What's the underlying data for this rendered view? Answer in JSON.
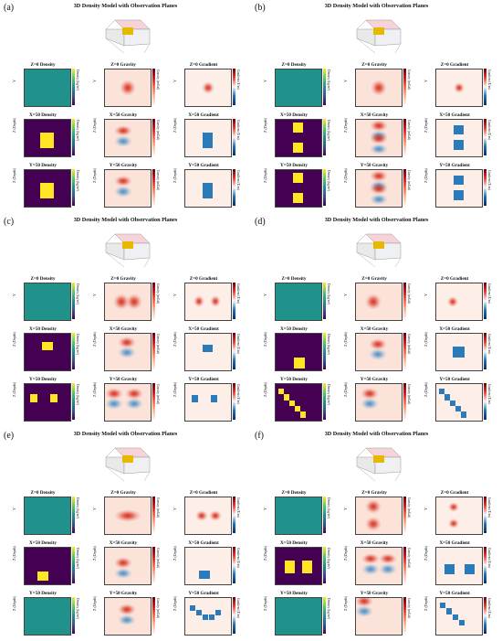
{
  "figure_title": "3D Density Model with Observation Planes",
  "panels": [
    {
      "letter": "(a)"
    },
    {
      "letter": "(b)"
    },
    {
      "letter": "(c)"
    },
    {
      "letter": "(d)"
    },
    {
      "letter": "(e)"
    },
    {
      "letter": "(f)"
    }
  ],
  "subplot_titles": {
    "z_density": "Z=0 Density",
    "z_gravity": "Z=0 Gravity",
    "z_gradient": "Z=0 Gradient",
    "x_density": "X=50 Density",
    "x_gravity": "X=50 Gravity",
    "x_gradient": "X=50 Gradient",
    "y_density": "Y=50 Density",
    "y_gravity": "Y=50 Gravity",
    "y_gradient": "Y=50 Gradient"
  },
  "axis_labels": {
    "y": "Y",
    "depth": "Z (Depth)",
    "density_cbar": "Density (kg/m³)",
    "gravity_cbar": "Gravity (mGal)",
    "gradient_cbar": "Gradient (E/m)"
  },
  "colors": {
    "density_background": "#440154",
    "density_teal": "#21918c",
    "density_body": "#fde725",
    "gradient_block": "#2b7bba",
    "gravity_high": "#d7301f",
    "gravity_low": "#4a90c8",
    "cube_body": "#e6b800"
  }
}
